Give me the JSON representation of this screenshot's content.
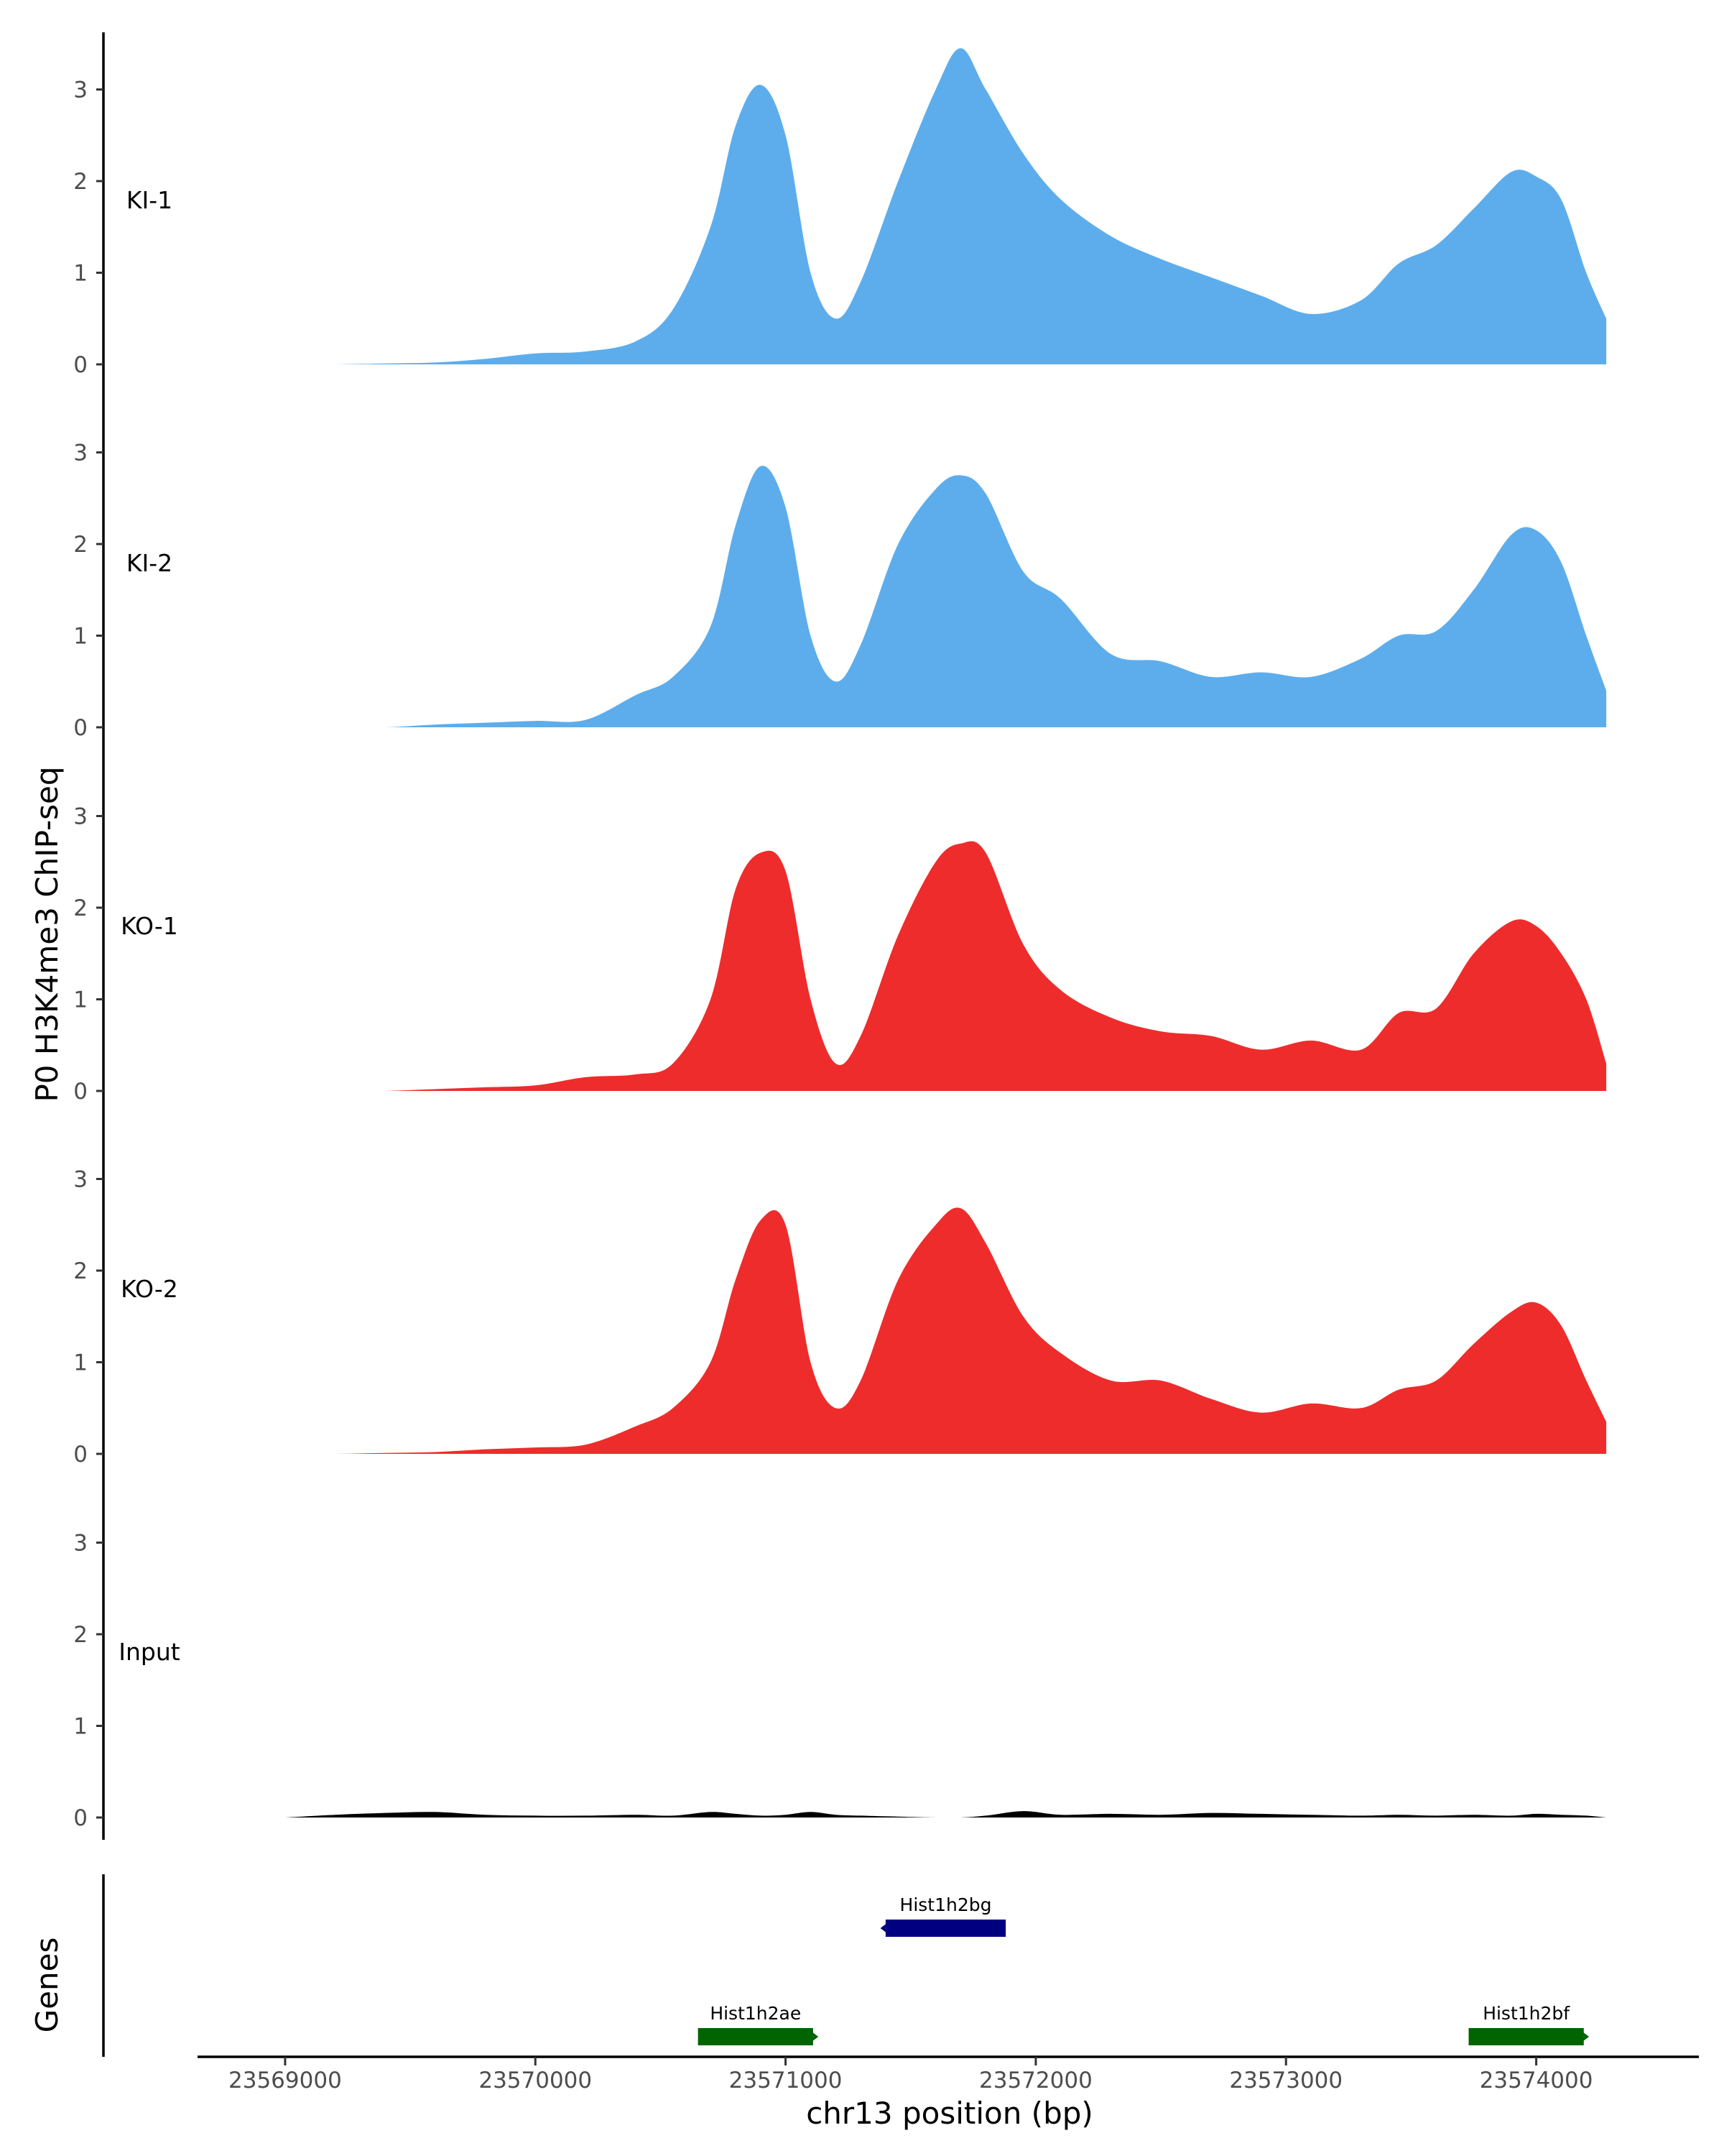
{
  "chart_data": {
    "type": "area",
    "ylabel": "P0 H3K4me3 ChIP-seq",
    "xlabel": "chr13 position (bp)",
    "genes_label": "Genes",
    "xlim": [
      23568650,
      23574650
    ],
    "ylim": [
      0,
      3.6
    ],
    "y_ticks": [
      0,
      1,
      2,
      3
    ],
    "x_ticks": [
      23569000,
      23570000,
      23571000,
      23572000,
      23573000,
      23574000
    ],
    "x_tick_labels": [
      "23569000",
      "23570000",
      "23571000",
      "23572000",
      "23573000",
      "23574000"
    ],
    "colors": {
      "KI": "#5DADEC",
      "KO": "#EE2C2C",
      "Input": "#000000",
      "gene_plus": "#006400",
      "gene_minus": "#000080"
    },
    "x": [
      23569000,
      23569200,
      23569400,
      23569600,
      23569800,
      23570000,
      23570200,
      23570400,
      23570550,
      23570700,
      23570800,
      23570900,
      23571000,
      23571100,
      23571200,
      23571300,
      23571450,
      23571600,
      23571700,
      23571800,
      23571950,
      23572100,
      23572300,
      23572500,
      23572700,
      23572900,
      23573100,
      23573300,
      23573450,
      23573600,
      23573750,
      23573900,
      23574000,
      23574100,
      23574200,
      23574280
    ],
    "series": [
      {
        "name": "KI-1",
        "color": "#5DADEC",
        "values": [
          0.0,
          0.0,
          0.01,
          0.02,
          0.06,
          0.12,
          0.14,
          0.25,
          0.6,
          1.5,
          2.6,
          3.05,
          2.5,
          1.0,
          0.5,
          0.9,
          2.0,
          3.0,
          3.45,
          3.0,
          2.3,
          1.8,
          1.4,
          1.15,
          0.95,
          0.75,
          0.55,
          0.7,
          1.1,
          1.3,
          1.7,
          2.1,
          2.05,
          1.8,
          1.0,
          0.5
        ]
      },
      {
        "name": "KI-2",
        "color": "#5DADEC",
        "values": [
          0.0,
          0.0,
          0.0,
          0.03,
          0.05,
          0.07,
          0.08,
          0.35,
          0.55,
          1.1,
          2.2,
          2.85,
          2.4,
          1.0,
          0.5,
          0.9,
          2.0,
          2.6,
          2.75,
          2.55,
          1.7,
          1.4,
          0.8,
          0.72,
          0.55,
          0.6,
          0.55,
          0.75,
          1.0,
          1.05,
          1.5,
          2.1,
          2.15,
          1.8,
          1.0,
          0.4
        ]
      },
      {
        "name": "KO-1",
        "color": "#EE2C2C",
        "values": [
          0.0,
          0.0,
          0.0,
          0.02,
          0.04,
          0.06,
          0.15,
          0.18,
          0.3,
          1.0,
          2.2,
          2.6,
          2.4,
          1.0,
          0.3,
          0.6,
          1.7,
          2.5,
          2.7,
          2.6,
          1.6,
          1.1,
          0.8,
          0.65,
          0.6,
          0.45,
          0.55,
          0.45,
          0.85,
          0.9,
          1.5,
          1.85,
          1.8,
          1.5,
          1.0,
          0.3
        ]
      },
      {
        "name": "KO-2",
        "color": "#EE2C2C",
        "values": [
          0.0,
          0.0,
          0.01,
          0.02,
          0.05,
          0.07,
          0.1,
          0.3,
          0.5,
          1.0,
          1.9,
          2.55,
          2.5,
          1.0,
          0.5,
          0.8,
          1.9,
          2.5,
          2.68,
          2.3,
          1.5,
          1.1,
          0.8,
          0.8,
          0.6,
          0.45,
          0.55,
          0.5,
          0.7,
          0.8,
          1.2,
          1.55,
          1.65,
          1.4,
          0.8,
          0.35
        ]
      },
      {
        "name": "Input",
        "color": "#000000",
        "values": [
          0.0,
          0.03,
          0.05,
          0.06,
          0.03,
          0.02,
          0.02,
          0.03,
          0.02,
          0.06,
          0.04,
          0.02,
          0.03,
          0.06,
          0.03,
          0.02,
          0.01,
          0.0,
          0.0,
          0.02,
          0.07,
          0.03,
          0.04,
          0.03,
          0.05,
          0.04,
          0.03,
          0.02,
          0.03,
          0.02,
          0.03,
          0.02,
          0.04,
          0.03,
          0.02,
          0.0
        ]
      }
    ],
    "genes": [
      {
        "name": "Hist1h2bg",
        "start": 23571400,
        "end": 23571880,
        "strand": "-",
        "color": "#000080"
      },
      {
        "name": "Hist1h2ae",
        "start": 23570650,
        "end": 23571110,
        "strand": "+",
        "color": "#006400"
      },
      {
        "name": "Hist1h2bf",
        "start": 23573730,
        "end": 23574190,
        "strand": "+",
        "color": "#006400"
      }
    ]
  }
}
